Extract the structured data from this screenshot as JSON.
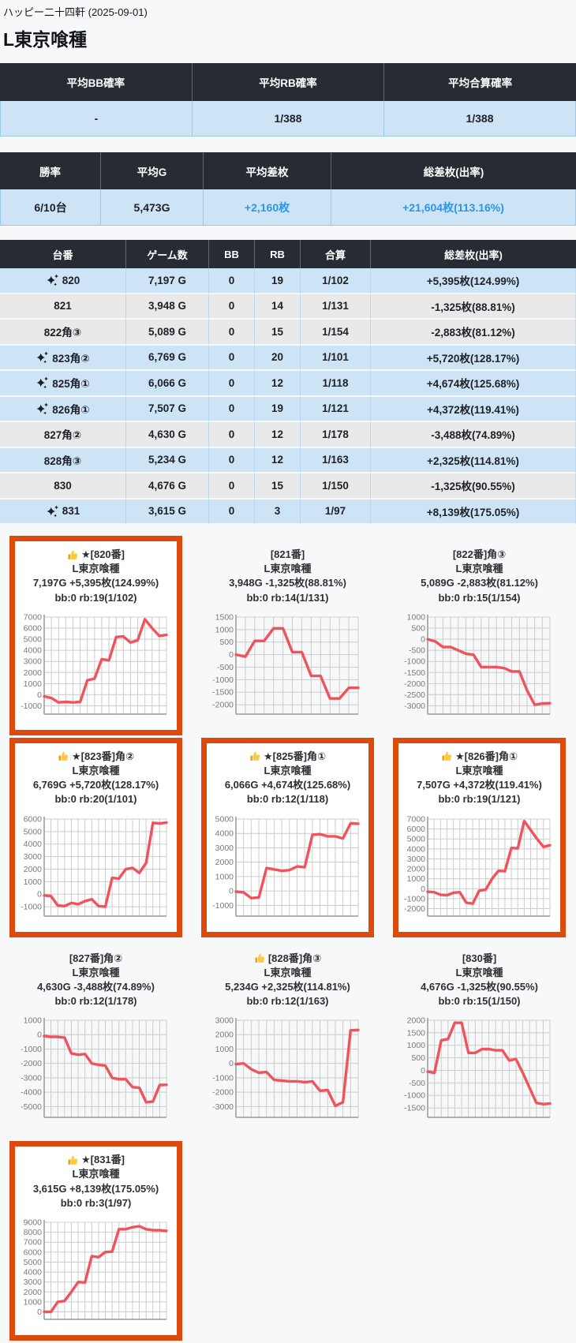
{
  "header": {
    "hall_line": "ハッピー二十四軒 (2025-09-01)",
    "title": "L東京喰種"
  },
  "colors": {
    "header_dark": "#272c34",
    "row_highlight_blue": "#cde4f6",
    "row_gray": "#e9e9e9",
    "blue_text": "#2b96e8",
    "accent_orange_border": "#dd4a0e",
    "chart_line_red": "#f0535b",
    "chart_grid": "#cccccc",
    "chart_axis": "#999999"
  },
  "avg_table": {
    "headers": [
      "平均BB確率",
      "平均RB確率",
      "平均合算確率"
    ],
    "values": [
      "-",
      "1/388",
      "1/388"
    ]
  },
  "total_table": {
    "headers": [
      "勝率",
      "平均G",
      "平均差枚",
      "総差枚(出率)"
    ],
    "values": [
      "6/10台",
      "5,473G",
      "+2,160枚",
      "+21,604枚(113.16%)"
    ],
    "blue_value_cols": [
      2,
      3
    ]
  },
  "main_table": {
    "headers": [
      "台番",
      "ゲーム数",
      "BB",
      "RB",
      "合算",
      "総差枚(出率)"
    ],
    "rows": [
      {
        "sparkle": true,
        "dai": "820",
        "games": "7,197 G",
        "bb": "0",
        "rb": "19",
        "gassan": "1/102",
        "result": "+5,395枚(124.99%)",
        "highlight": true
      },
      {
        "sparkle": false,
        "dai": "821",
        "games": "3,948 G",
        "bb": "0",
        "rb": "14",
        "gassan": "1/131",
        "result": "-1,325枚(88.81%)",
        "highlight": false
      },
      {
        "sparkle": false,
        "dai": "822角③",
        "games": "5,089 G",
        "bb": "0",
        "rb": "15",
        "gassan": "1/154",
        "result": "-2,883枚(81.12%)",
        "highlight": false
      },
      {
        "sparkle": true,
        "dai": "823角②",
        "games": "6,769 G",
        "bb": "0",
        "rb": "20",
        "gassan": "1/101",
        "result": "+5,720枚(128.17%)",
        "highlight": true
      },
      {
        "sparkle": true,
        "dai": "825角①",
        "games": "6,066 G",
        "bb": "0",
        "rb": "12",
        "gassan": "1/118",
        "result": "+4,674枚(125.68%)",
        "highlight": true
      },
      {
        "sparkle": true,
        "dai": "826角①",
        "games": "7,507 G",
        "bb": "0",
        "rb": "19",
        "gassan": "1/121",
        "result": "+4,372枚(119.41%)",
        "highlight": true
      },
      {
        "sparkle": false,
        "dai": "827角②",
        "games": "4,630 G",
        "bb": "0",
        "rb": "12",
        "gassan": "1/178",
        "result": "-3,488枚(74.89%)",
        "highlight": false
      },
      {
        "sparkle": false,
        "dai": "828角③",
        "games": "5,234 G",
        "bb": "0",
        "rb": "12",
        "gassan": "1/163",
        "result": "+2,325枚(114.81%)",
        "highlight": true
      },
      {
        "sparkle": false,
        "dai": "830",
        "games": "4,676 G",
        "bb": "0",
        "rb": "15",
        "gassan": "1/150",
        "result": "-1,325枚(90.55%)",
        "highlight": false
      },
      {
        "sparkle": true,
        "dai": "831",
        "games": "3,615 G",
        "bb": "0",
        "rb": "3",
        "gassan": "1/97",
        "result": "+8,139枚(175.05%)",
        "highlight": true
      }
    ]
  },
  "chart_data": [
    {
      "type": "line",
      "dai": "820",
      "bordered": true,
      "thumb": true,
      "label": "★[820番]",
      "machine": "L東京喰種",
      "stats": "7,197G +5,395枚(124.99%)",
      "bonus": "bb:0 rb:19(1/102)",
      "yticks": [
        7000,
        6000,
        5000,
        4000,
        3000,
        2000,
        1000,
        0,
        -1000
      ],
      "values": [
        -150,
        -300,
        -700,
        -650,
        -700,
        -650,
        1300,
        1450,
        3200,
        3100,
        5200,
        5250,
        4700,
        4900,
        6800,
        6000,
        5300,
        5395
      ]
    },
    {
      "type": "line",
      "dai": "821",
      "bordered": false,
      "thumb": false,
      "label": "[821番]",
      "machine": "L東京喰種",
      "stats": "3,948G -1,325枚(88.81%)",
      "bonus": "bb:0 rb:14(1/131)",
      "yticks": [
        1500,
        1000,
        500,
        0,
        -500,
        -1000,
        -1500,
        -2000
      ],
      "values": [
        0,
        -80,
        550,
        550,
        1050,
        1050,
        100,
        100,
        -850,
        -850,
        -1750,
        -1750,
        -1325,
        -1325
      ]
    },
    {
      "type": "line",
      "dai": "822",
      "bordered": false,
      "thumb": false,
      "label": "[822番]角③",
      "machine": "L東京喰種",
      "stats": "5,089G -2,883枚(81.12%)",
      "bonus": "bb:0 rb:15(1/154)",
      "yticks": [
        1000,
        500,
        0,
        -500,
        -1000,
        -1500,
        -2000,
        -2500,
        -3000
      ],
      "values": [
        0,
        -100,
        -350,
        -350,
        -500,
        -650,
        -700,
        -1250,
        -1250,
        -1250,
        -1300,
        -1450,
        -1450,
        -2300,
        -2950,
        -2900,
        -2883
      ]
    },
    {
      "type": "line",
      "dai": "823",
      "bordered": true,
      "thumb": true,
      "label": "★[823番]角②",
      "machine": "L東京喰種",
      "stats": "6,769G +5,720枚(128.17%)",
      "bonus": "bb:0 rb:20(1/101)",
      "yticks": [
        6000,
        5000,
        4000,
        3000,
        2000,
        1000,
        0,
        -1000
      ],
      "values": [
        -100,
        -150,
        -900,
        -950,
        -700,
        -800,
        -550,
        -400,
        -950,
        -1000,
        1300,
        1250,
        2000,
        2100,
        1700,
        2500,
        5700,
        5650,
        5720
      ]
    },
    {
      "type": "line",
      "dai": "825",
      "bordered": true,
      "thumb": true,
      "label": "★[825番]角①",
      "machine": "L東京喰種",
      "stats": "6,066G +4,674枚(125.68%)",
      "bonus": "bb:0 rb:12(1/118)",
      "yticks": [
        5000,
        4000,
        3000,
        2000,
        1000,
        0,
        -1000
      ],
      "values": [
        -50,
        -100,
        -500,
        -450,
        1600,
        1500,
        1400,
        1450,
        1700,
        1650,
        3900,
        3950,
        3800,
        3800,
        3650,
        4700,
        4674
      ]
    },
    {
      "type": "line",
      "dai": "826",
      "bordered": true,
      "thumb": true,
      "label": "★[826番]角①",
      "machine": "L東京喰種",
      "stats": "7,507G +4,372枚(119.41%)",
      "bonus": "bb:0 rb:19(1/121)",
      "yticks": [
        7000,
        6000,
        5000,
        4000,
        3000,
        2000,
        1000,
        0,
        -1000,
        -2000
      ],
      "values": [
        -300,
        -350,
        -600,
        -650,
        -400,
        -350,
        -1400,
        -1500,
        -200,
        -100,
        1000,
        1800,
        1750,
        4100,
        4050,
        6800,
        5900,
        5000,
        4200,
        4372
      ]
    },
    {
      "type": "line",
      "dai": "827",
      "bordered": false,
      "thumb": false,
      "label": "[827番]角②",
      "machine": "L東京喰種",
      "stats": "4,630G -3,488枚(74.89%)",
      "bonus": "bb:0 rb:12(1/178)",
      "yticks": [
        1000,
        0,
        -1000,
        -2000,
        -3000,
        -4000,
        -5000
      ],
      "values": [
        -100,
        -150,
        -150,
        -200,
        -1300,
        -1400,
        -1350,
        -2000,
        -2100,
        -2150,
        -3000,
        -3100,
        -3100,
        -3650,
        -3700,
        -4700,
        -4650,
        -3500,
        -3488
      ]
    },
    {
      "type": "line",
      "dai": "828",
      "bordered": false,
      "thumb": true,
      "label": "[828番]角③",
      "machine": "L東京喰種",
      "stats": "5,234G +2,325枚(114.81%)",
      "bonus": "bb:0 rb:12(1/163)",
      "yticks": [
        3000,
        2000,
        1000,
        0,
        -1000,
        -2000,
        -3000
      ],
      "values": [
        -50,
        0,
        -400,
        -650,
        -600,
        -1150,
        -1200,
        -1250,
        -1250,
        -1300,
        -1250,
        -1900,
        -1850,
        -2950,
        -2700,
        2300,
        2325
      ]
    },
    {
      "type": "line",
      "dai": "830",
      "bordered": false,
      "thumb": false,
      "label": "[830番]",
      "machine": "L東京喰種",
      "stats": "4,676G -1,325枚(90.55%)",
      "bonus": "bb:0 rb:15(1/150)",
      "yticks": [
        2000,
        1500,
        1000,
        500,
        0,
        -500,
        -1000,
        -1500
      ],
      "values": [
        -50,
        -100,
        1200,
        1250,
        1900,
        1900,
        700,
        700,
        850,
        850,
        800,
        800,
        400,
        450,
        -100,
        -700,
        -1300,
        -1350,
        -1325
      ]
    },
    {
      "type": "line",
      "dai": "831",
      "bordered": true,
      "thumb": true,
      "label": "★[831番]",
      "machine": "L東京喰種",
      "stats": "3,615G +8,139枚(175.05%)",
      "bonus": "bb:0 rb:3(1/97)",
      "yticks": [
        9000,
        8000,
        7000,
        6000,
        5000,
        4000,
        3000,
        2000,
        1000,
        0
      ],
      "values": [
        0,
        0,
        1000,
        1100,
        2000,
        3000,
        2950,
        5600,
        5500,
        6000,
        6050,
        8300,
        8300,
        8500,
        8600,
        8300,
        8200,
        8200,
        8139
      ]
    }
  ]
}
